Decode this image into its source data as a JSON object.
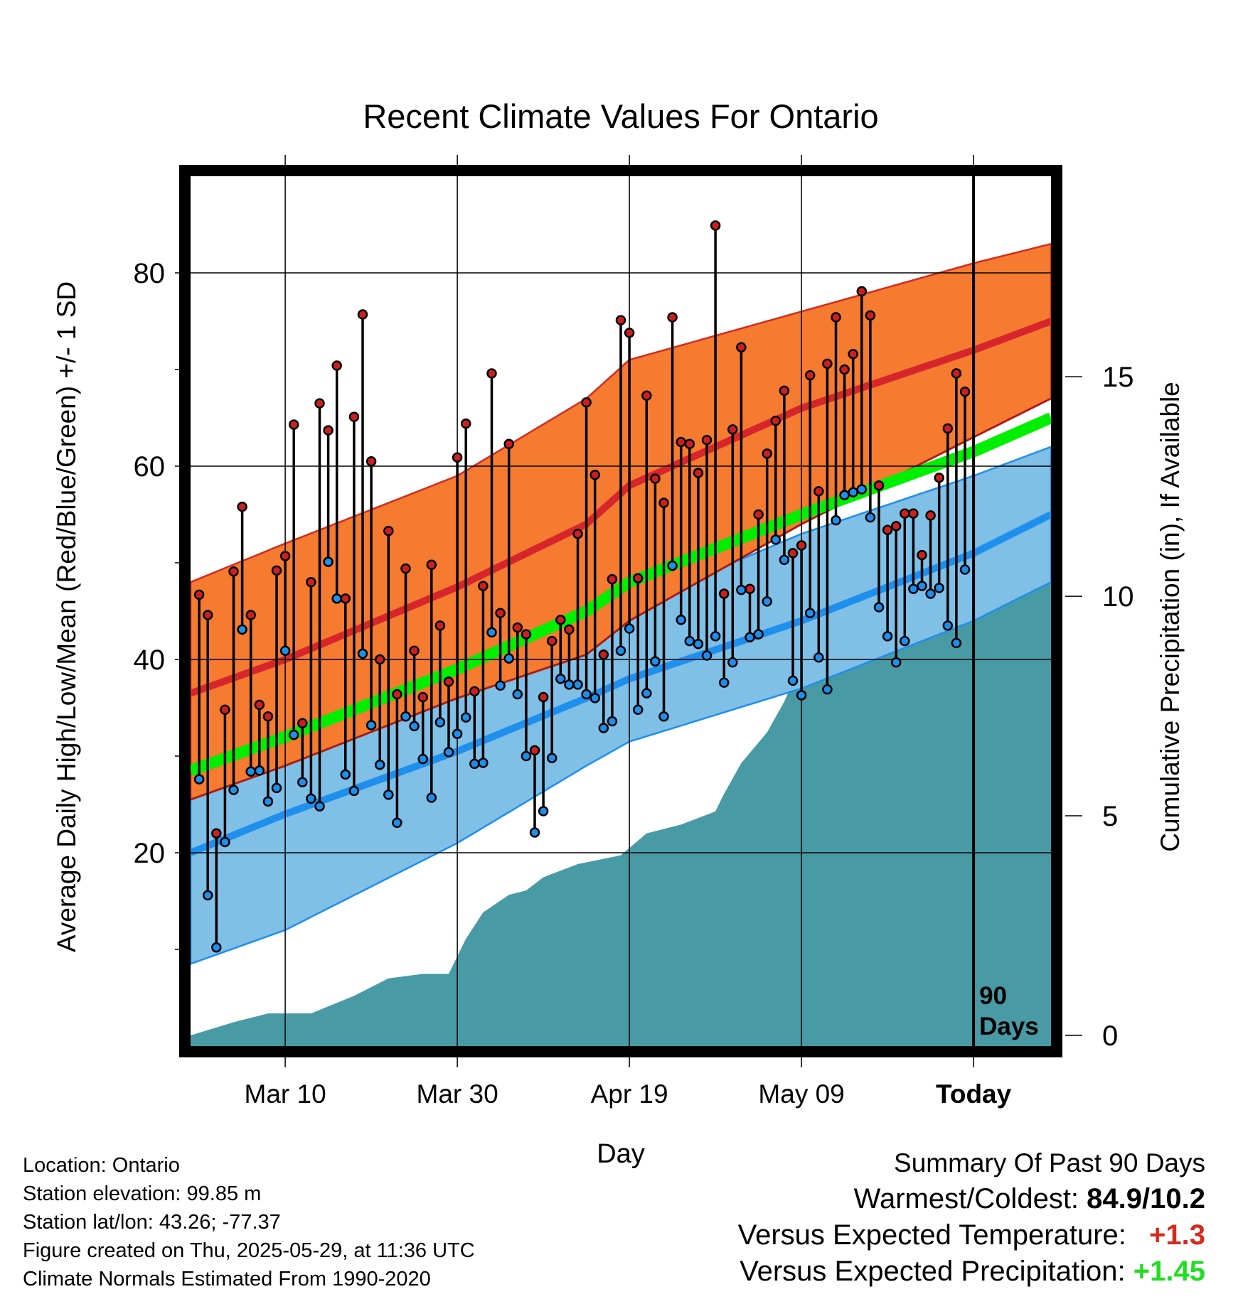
{
  "title": "Recent Climate Values For Ontario",
  "colors": {
    "high_band": "#f47b30",
    "high_band_edge": "#d62a1e",
    "mean_high_line": "#d7262b",
    "low_band": "#80bfe6",
    "low_band_edge": "#1e8fec",
    "mean_low_line": "#1e8fec",
    "mean_line": "#00ee00",
    "precip_fill": "#489aa5",
    "high_marker": "#cc2020",
    "low_marker": "#1e8fec",
    "positive_temp": "#d62a1e",
    "positive_precip": "#22dd22"
  },
  "chart_data": {
    "type": "line",
    "title": "Recent Climate Values For Ontario",
    "xlabel": "Day",
    "ylabel": "Average Daily High/Low/Mean (Red/Blue/Green) +/- 1 SD",
    "y2label": "Cumulative Precipitation (in), If Available",
    "x_tick_labels": [
      "Mar 10",
      "Mar 30",
      "Apr 19",
      "May 09",
      "Today"
    ],
    "x_tick_days": [
      10,
      30,
      50,
      70,
      90
    ],
    "x_range_days": [
      -1,
      99
    ],
    "ylim": [
      0,
      90
    ],
    "y_ticks": [
      20,
      40,
      60,
      80
    ],
    "y2lim": [
      0,
      18
    ],
    "y2_ticks": [
      0,
      5,
      10,
      15
    ],
    "today_marker": {
      "day": 90,
      "label_line1": "90",
      "label_line2": "Days"
    },
    "grid": true,
    "normals": {
      "days": [
        -1,
        10,
        30,
        45,
        50,
        70,
        90,
        99
      ],
      "high": [
        36.5,
        40,
        47.5,
        54,
        58,
        66,
        72,
        75
      ],
      "high_sd_upper": [
        48,
        52,
        59,
        67,
        71,
        76,
        81,
        83
      ],
      "high_sd_lower": [
        25.5,
        29,
        36,
        40.5,
        44,
        54,
        63,
        67
      ],
      "low": [
        20,
        24,
        30.5,
        36,
        38,
        44,
        51,
        55
      ],
      "low_sd_upper": [
        31.5,
        34.5,
        37.5,
        43,
        45.5,
        53,
        59,
        62
      ],
      "low_sd_lower": [
        8.5,
        12,
        21,
        29,
        31.5,
        37,
        44,
        48
      ],
      "mean": [
        28.5,
        32,
        39,
        45,
        48,
        55,
        61.5,
        65
      ]
    },
    "series": [
      {
        "name": "High",
        "values": [
          46.7,
          44.6,
          22.0,
          34.8,
          49.1,
          55.8,
          44.6,
          35.3,
          34.1,
          49.2,
          50.7,
          64.3,
          33.4,
          48.0,
          66.5,
          63.7,
          70.4,
          46.3,
          65.1,
          75.7,
          60.5,
          40.0,
          53.3,
          36.4,
          49.4,
          40.9,
          36.1,
          49.8,
          43.5,
          37.7,
          60.9,
          64.4,
          36.7,
          47.6,
          69.6,
          44.8,
          62.3,
          43.3,
          42.6,
          30.6,
          36.1,
          41.9,
          44.1,
          43.1,
          53.0,
          66.6,
          59.1,
          40.5,
          48.3,
          75.1,
          73.8,
          48.4,
          67.3,
          58.7,
          56.2,
          75.4,
          62.5,
          62.3,
          59.3,
          62.7,
          84.9,
          46.8,
          63.8,
          72.3,
          47.3,
          55.0,
          61.3,
          64.7,
          67.8,
          51.0,
          51.8,
          69.4,
          57.4,
          70.6,
          75.4,
          70.0,
          71.6,
          78.1,
          75.6,
          58.0,
          53.4,
          53.8,
          55.1,
          55.1,
          50.8,
          54.9,
          58.8,
          63.9,
          69.6,
          67.7
        ]
      },
      {
        "name": "Low",
        "values": [
          27.6,
          15.6,
          10.2,
          21.1,
          26.5,
          43.1,
          28.4,
          28.5,
          25.3,
          26.7,
          40.9,
          32.2,
          27.3,
          25.6,
          24.8,
          50.1,
          46.3,
          28.1,
          26.4,
          40.6,
          33.2,
          29.1,
          26.0,
          23.1,
          34.1,
          33.1,
          29.7,
          25.7,
          33.5,
          30.4,
          32.3,
          34.0,
          29.2,
          29.3,
          42.8,
          37.3,
          40.1,
          36.4,
          30.0,
          22.1,
          24.3,
          29.8,
          38.0,
          37.4,
          37.4,
          36.4,
          36.0,
          32.9,
          33.6,
          40.9,
          43.2,
          34.8,
          36.5,
          39.8,
          34.1,
          49.7,
          44.1,
          41.9,
          41.6,
          40.4,
          42.4,
          37.6,
          39.7,
          47.2,
          42.3,
          42.6,
          46.0,
          52.4,
          50.3,
          37.8,
          36.3,
          44.8,
          40.2,
          36.9,
          54.4,
          57.0,
          57.3,
          57.6,
          54.7,
          45.4,
          42.4,
          39.7,
          41.9,
          47.3,
          47.6,
          46.8,
          47.4,
          43.5,
          41.7,
          49.3
        ]
      }
    ],
    "precipitation": {
      "name": "Cumulative Precipitation",
      "days": [
        -1,
        4,
        8,
        13,
        18,
        22,
        26,
        29,
        31,
        33,
        36,
        38,
        40,
        44,
        49,
        52,
        56,
        60,
        61,
        63,
        66,
        68,
        70,
        75,
        77,
        80,
        83,
        85,
        89,
        99
      ],
      "values": [
        0,
        0.3,
        0.5,
        0.5,
        0.9,
        1.3,
        1.4,
        1.4,
        2.2,
        2.8,
        3.2,
        3.3,
        3.6,
        3.9,
        4.1,
        4.6,
        4.8,
        5.1,
        5.5,
        6.2,
        6.9,
        7.6,
        8.5,
        8.5,
        9.0,
        9.0,
        9.8,
        10.2,
        10.7,
        10.7
      ]
    }
  },
  "info": {
    "location": "Location: Ontario",
    "elevation": "Station elevation: 99.85 m",
    "latlon": "Station lat/lon: 43.26; -77.37",
    "created": "Figure created on Thu, 2025-05-29, at 11:36 UTC",
    "normals": "Climate Normals Estimated From 1990-2020"
  },
  "summary": {
    "title": "Summary Of Past 90 Days",
    "warmest_coldest_label": "Warmest/Coldest:",
    "warmest_coldest_value": "84.9/10.2",
    "temp_label": "Versus Expected Temperature:",
    "temp_value": "+1.3",
    "precip_label": "Versus Expected Precipitation:",
    "precip_value": "+1.45"
  }
}
